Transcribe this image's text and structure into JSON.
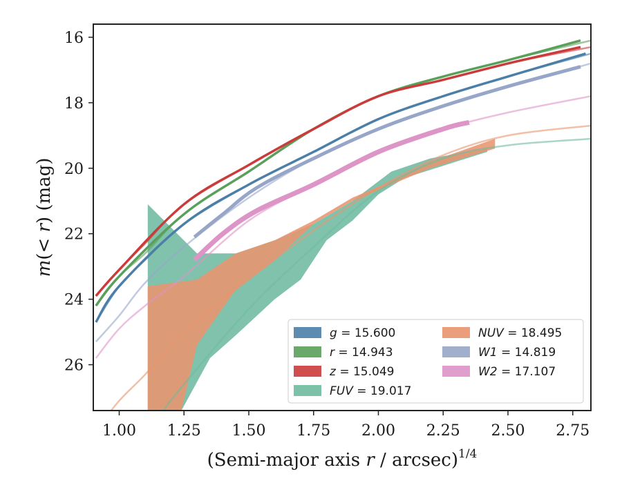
{
  "chart_data": {
    "type": "line",
    "xlabel_main": "(Semi-major axis ",
    "xlabel_var": "r",
    "xlabel_rest": " / arcsec)",
    "xlabel_sup": "1/4",
    "ylabel_m": "m",
    "ylabel_open": "(< ",
    "ylabel_r": "r",
    "ylabel_close": ") (mag)",
    "xlim": [
      0.9,
      2.82
    ],
    "ylim": [
      27.4,
      15.6
    ],
    "xticks": [
      "1.00",
      "1.25",
      "1.50",
      "1.75",
      "2.00",
      "2.25",
      "2.50",
      "2.75"
    ],
    "yticks": [
      "16",
      "18",
      "20",
      "22",
      "24",
      "26"
    ],
    "legend": {
      "placement": "lower-right",
      "entries": [
        {
          "var": "g",
          "text": " = 15.600",
          "color": "#4c7fa8"
        },
        {
          "var": "r",
          "text": " = 14.943",
          "color": "#5aa05a"
        },
        {
          "var": "z",
          "text": " = 15.049",
          "color": "#cc3b3b"
        },
        {
          "var": "FUV",
          "text": " = 19.017",
          "color": "#6fbaa0"
        },
        {
          "var": "NUV",
          "text": " = 18.495",
          "color": "#e9946e"
        },
        {
          "var": "W1",
          "text": " = 14.819",
          "color": "#97a6c8"
        },
        {
          "var": "W2",
          "text": " = 17.107",
          "color": "#dd94c6"
        }
      ]
    },
    "series": [
      {
        "name": "g",
        "color": "#4c7fa8",
        "model": [
          [
            0.91,
            24.7
          ],
          [
            1.0,
            23.6
          ],
          [
            1.1,
            22.8
          ],
          [
            1.25,
            21.7
          ],
          [
            1.5,
            20.5
          ],
          [
            1.75,
            19.5
          ],
          [
            2.0,
            18.5
          ],
          [
            2.25,
            17.8
          ],
          [
            2.5,
            17.2
          ],
          [
            2.82,
            16.5
          ]
        ],
        "data": [
          [
            0.91,
            24.7
          ],
          [
            1.0,
            23.6
          ],
          [
            1.25,
            21.7
          ],
          [
            1.5,
            20.5
          ],
          [
            1.75,
            19.5
          ],
          [
            2.0,
            18.5
          ],
          [
            2.25,
            17.8
          ],
          [
            2.5,
            17.2
          ],
          [
            2.8,
            16.5
          ]
        ]
      },
      {
        "name": "r",
        "color": "#5aa05a",
        "model": [
          [
            0.91,
            24.2
          ],
          [
            1.0,
            23.3
          ],
          [
            1.1,
            22.6
          ],
          [
            1.25,
            21.4
          ],
          [
            1.5,
            20.1
          ],
          [
            1.75,
            18.8
          ],
          [
            2.0,
            17.8
          ],
          [
            2.25,
            17.2
          ],
          [
            2.5,
            16.7
          ],
          [
            2.82,
            16.1
          ]
        ],
        "data": [
          [
            0.91,
            24.2
          ],
          [
            1.0,
            23.3
          ],
          [
            1.25,
            21.4
          ],
          [
            1.5,
            20.1
          ],
          [
            1.75,
            18.8
          ],
          [
            2.0,
            17.8
          ],
          [
            2.25,
            17.2
          ],
          [
            2.5,
            16.7
          ],
          [
            2.78,
            16.1
          ]
        ]
      },
      {
        "name": "z",
        "color": "#cc3b3b",
        "model": [
          [
            0.91,
            23.9
          ],
          [
            1.0,
            23.1
          ],
          [
            1.1,
            22.3
          ],
          [
            1.25,
            21.1
          ],
          [
            1.5,
            19.9
          ],
          [
            1.75,
            18.8
          ],
          [
            2.0,
            17.8
          ],
          [
            2.25,
            17.3
          ],
          [
            2.5,
            16.8
          ],
          [
            2.82,
            16.3
          ]
        ],
        "data": [
          [
            0.91,
            23.9
          ],
          [
            1.0,
            23.1
          ],
          [
            1.25,
            21.1
          ],
          [
            1.5,
            19.9
          ],
          [
            1.75,
            18.8
          ],
          [
            2.0,
            17.8
          ],
          [
            2.25,
            17.3
          ],
          [
            2.5,
            16.8
          ],
          [
            2.78,
            16.3
          ]
        ]
      },
      {
        "name": "W1",
        "color": "#97a6c8",
        "model": [
          [
            0.91,
            25.3
          ],
          [
            1.0,
            24.5
          ],
          [
            1.1,
            23.5
          ],
          [
            1.25,
            22.4
          ],
          [
            1.5,
            20.9
          ],
          [
            1.75,
            19.7
          ],
          [
            2.0,
            18.8
          ],
          [
            2.25,
            18.1
          ],
          [
            2.5,
            17.5
          ],
          [
            2.82,
            16.8
          ]
        ],
        "data": [
          [
            1.29,
            22.1
          ],
          [
            1.4,
            21.4
          ],
          [
            1.53,
            20.6
          ],
          [
            1.75,
            19.7
          ],
          [
            2.0,
            18.8
          ],
          [
            2.25,
            18.1
          ],
          [
            2.5,
            17.5
          ],
          [
            2.78,
            16.9
          ]
        ]
      },
      {
        "name": "W2",
        "color": "#dd94c6",
        "model": [
          [
            0.91,
            25.8
          ],
          [
            1.0,
            24.9
          ],
          [
            1.1,
            24.2
          ],
          [
            1.25,
            23.3
          ],
          [
            1.5,
            21.6
          ],
          [
            1.75,
            20.5
          ],
          [
            2.0,
            19.5
          ],
          [
            2.25,
            18.8
          ],
          [
            2.5,
            18.3
          ],
          [
            2.82,
            17.8
          ]
        ],
        "data": [
          [
            1.29,
            22.8
          ],
          [
            1.4,
            22.0
          ],
          [
            1.53,
            21.3
          ],
          [
            1.75,
            20.5
          ],
          [
            2.0,
            19.5
          ],
          [
            2.25,
            18.8
          ],
          [
            2.35,
            18.6
          ]
        ]
      },
      {
        "name": "NUV",
        "color": "#e9946e",
        "model": [
          [
            0.91,
            28.0
          ],
          [
            1.0,
            27.1
          ],
          [
            1.1,
            26.3
          ],
          [
            1.25,
            25.0
          ],
          [
            1.5,
            23.4
          ],
          [
            1.75,
            21.9
          ],
          [
            2.0,
            20.6
          ],
          [
            2.25,
            19.6
          ],
          [
            2.5,
            19.0
          ],
          [
            2.82,
            18.7
          ]
        ]
      },
      {
        "name": "FUV",
        "color": "#6fbaa0",
        "model": [
          [
            1.15,
            27.6
          ],
          [
            1.25,
            26.6
          ],
          [
            1.5,
            24.3
          ],
          [
            1.75,
            22.4
          ],
          [
            2.0,
            20.7
          ],
          [
            2.25,
            19.7
          ],
          [
            2.5,
            19.3
          ],
          [
            2.82,
            19.1
          ]
        ]
      }
    ],
    "bands": [
      {
        "name": "FUV",
        "color": "#6fbaa0",
        "upper": [
          [
            1.11,
            21.1
          ],
          [
            1.3,
            22.6
          ],
          [
            1.45,
            22.6
          ],
          [
            1.6,
            22.2
          ],
          [
            1.75,
            21.7
          ],
          [
            1.9,
            21.0
          ],
          [
            2.05,
            20.1
          ],
          [
            2.2,
            19.7
          ],
          [
            2.42,
            19.4
          ]
        ],
        "lower": [
          [
            1.11,
            27.4
          ],
          [
            1.24,
            27.4
          ],
          [
            1.35,
            25.8
          ],
          [
            1.45,
            25.1
          ],
          [
            1.6,
            24.0
          ],
          [
            1.7,
            23.4
          ],
          [
            1.8,
            22.2
          ],
          [
            1.9,
            21.6
          ],
          [
            2.0,
            20.8
          ],
          [
            2.1,
            20.3
          ],
          [
            2.3,
            19.8
          ],
          [
            2.42,
            19.5
          ]
        ]
      },
      {
        "name": "NUV",
        "color": "#e9946e",
        "upper": [
          [
            1.11,
            23.6
          ],
          [
            1.3,
            23.4
          ],
          [
            1.45,
            22.6
          ],
          [
            1.6,
            22.2
          ],
          [
            1.75,
            21.6
          ],
          [
            1.9,
            20.9
          ],
          [
            2.05,
            20.4
          ],
          [
            2.2,
            19.8
          ],
          [
            2.45,
            19.1
          ]
        ],
        "lower": [
          [
            1.11,
            27.4
          ],
          [
            1.24,
            27.4
          ],
          [
            1.3,
            25.4
          ],
          [
            1.45,
            23.7
          ],
          [
            1.6,
            22.8
          ],
          [
            1.75,
            21.7
          ],
          [
            1.9,
            21.0
          ],
          [
            2.05,
            20.5
          ],
          [
            2.2,
            20.0
          ],
          [
            2.45,
            19.4
          ]
        ]
      }
    ]
  }
}
